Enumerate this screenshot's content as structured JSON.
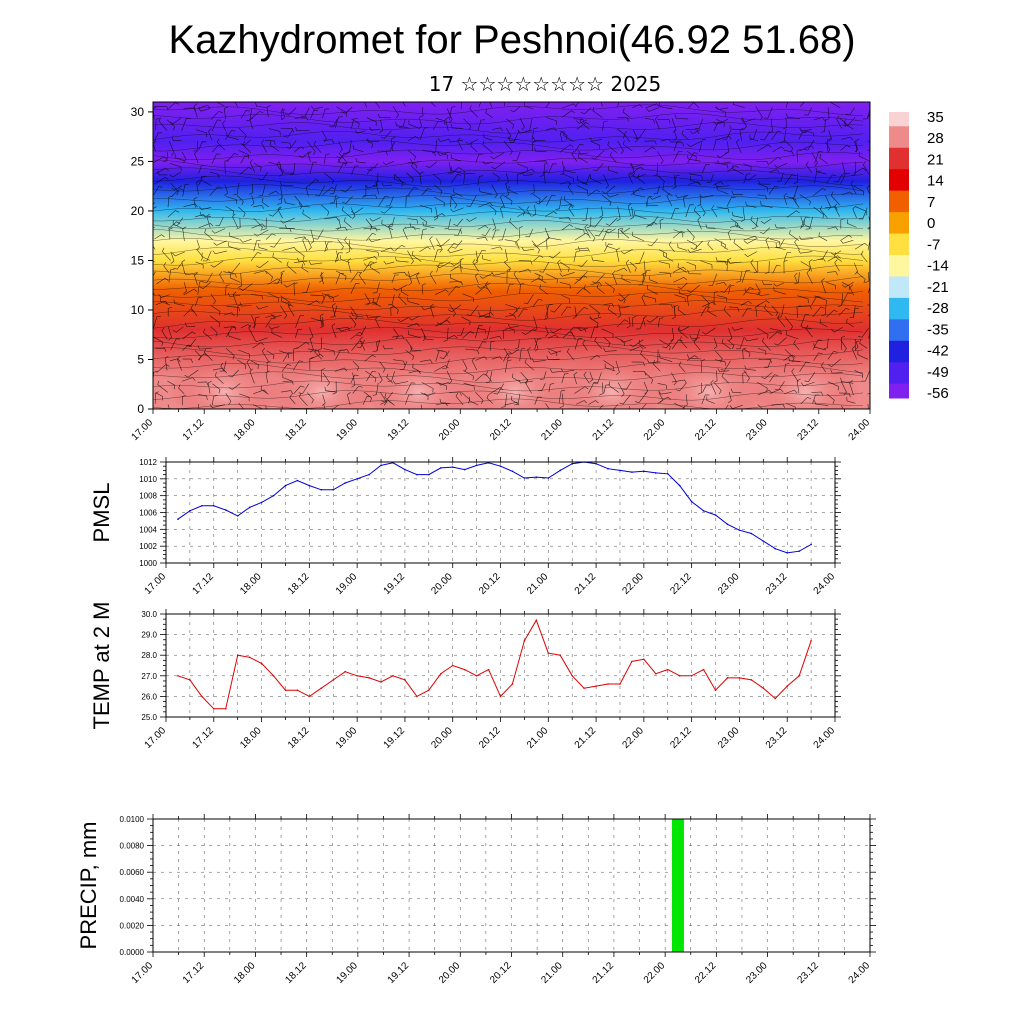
{
  "title": "Kazhydromet for Peshnoi(46.92 51.68)",
  "subtitle": "17 ☆☆☆☆☆☆☆☆ 2025",
  "time_ticks": [
    "17.00",
    "17.12",
    "18.00",
    "18.12",
    "19.00",
    "19.12",
    "20.00",
    "20.12",
    "21.00",
    "21.12",
    "22.00",
    "22.12",
    "23.00",
    "23.12",
    "24.00"
  ],
  "chart_data": [
    {
      "type": "heatmap",
      "name": "cross-section",
      "xlim": [
        0,
        14
      ],
      "ylim": [
        0,
        31
      ],
      "yticks": [
        0,
        5,
        10,
        15,
        20,
        25,
        30
      ],
      "colorbar": {
        "labels": [
          "35",
          "28",
          "21",
          "14",
          "7",
          "0",
          "-7",
          "-14",
          "-21",
          "-28",
          "-35",
          "-42",
          "-49",
          "-56"
        ],
        "palette": [
          "#f9d3d3",
          "#ef8a8a",
          "#e03030",
          "#e20000",
          "#f06000",
          "#f8a000",
          "#ffe040",
          "#fff6a0",
          "#c0e8f8",
          "#30b8f0",
          "#3070f0",
          "#2020e0",
          "#5020f0",
          "#8020f0"
        ]
      },
      "levels": [
        {
          "height": 0,
          "temp": 30
        },
        {
          "height": 3,
          "temp": 30
        },
        {
          "height": 8,
          "temp": 20
        },
        {
          "height": 12,
          "temp": 8
        },
        {
          "height": 15,
          "temp": -5
        },
        {
          "height": 17,
          "temp": -14
        },
        {
          "height": 20,
          "temp": -30
        },
        {
          "height": 23,
          "temp": -45
        },
        {
          "height": 25,
          "temp": -56
        },
        {
          "height": 27,
          "temp": -52
        },
        {
          "height": 31,
          "temp": -60
        }
      ]
    },
    {
      "type": "line",
      "name": "pmsl",
      "ylabel": "PMSL",
      "ylim": [
        1000,
        1012
      ],
      "yticks": [
        "1000",
        "1002",
        "1004",
        "1006",
        "1008",
        "1010",
        "1012"
      ],
      "color": "#0000dd",
      "x": [
        0.25,
        0.5,
        0.75,
        1.0,
        1.25,
        1.5,
        1.75,
        2.0,
        2.25,
        2.5,
        2.75,
        3.0,
        3.25,
        3.5,
        3.75,
        4.0,
        4.25,
        4.5,
        4.75,
        5.0,
        5.25,
        5.5,
        5.75,
        6.0,
        6.25,
        6.5,
        6.75,
        7.0,
        7.25,
        7.5,
        7.75,
        8.0,
        8.25,
        8.5,
        8.75,
        9.0,
        9.25,
        9.5,
        9.75,
        10.0,
        10.25,
        10.5,
        10.75,
        11.0,
        11.25,
        11.5,
        11.75,
        12.0,
        12.25,
        12.5,
        12.75,
        13.0,
        13.25,
        13.5
      ],
      "values": [
        1005.2,
        1006.2,
        1006.8,
        1006.8,
        1006.3,
        1005.6,
        1006.6,
        1007.2,
        1008.0,
        1009.2,
        1009.8,
        1009.2,
        1008.7,
        1008.7,
        1009.5,
        1010.0,
        1010.5,
        1011.6,
        1011.9,
        1011.1,
        1010.5,
        1010.5,
        1011.3,
        1011.4,
        1011.1,
        1011.6,
        1011.9,
        1011.5,
        1010.9,
        1010.1,
        1010.2,
        1010.1,
        1011.0,
        1011.8,
        1012.0,
        1011.8,
        1011.2,
        1011.0,
        1010.8,
        1010.9,
        1010.7,
        1010.6,
        1009.2,
        1007.3,
        1006.2,
        1005.7,
        1004.6,
        1003.9,
        1003.5,
        1002.6,
        1001.7,
        1001.2,
        1001.4,
        1002.2
      ]
    },
    {
      "type": "line",
      "name": "temp2m",
      "ylabel": "TEMP at 2 M",
      "ylim": [
        25,
        30
      ],
      "yticks": [
        "25.0",
        "26.0",
        "27.0",
        "28.0",
        "29.0",
        "30.0"
      ],
      "color": "#dd0000",
      "x": [
        0.25,
        0.5,
        0.75,
        1.0,
        1.25,
        1.5,
        1.75,
        2.0,
        2.25,
        2.5,
        2.75,
        3.0,
        3.25,
        3.5,
        3.75,
        4.0,
        4.25,
        4.5,
        4.75,
        5.0,
        5.25,
        5.5,
        5.75,
        6.0,
        6.25,
        6.5,
        6.75,
        7.0,
        7.25,
        7.5,
        7.75,
        8.0,
        8.25,
        8.5,
        8.75,
        9.0,
        9.25,
        9.5,
        9.75,
        10.0,
        10.25,
        10.5,
        10.75,
        11.0,
        11.25,
        11.5,
        11.75,
        12.0,
        12.25,
        12.5,
        12.75,
        13.0,
        13.25,
        13.5
      ],
      "values": [
        27.0,
        26.8,
        26.0,
        25.4,
        25.4,
        28.0,
        27.9,
        27.6,
        27.0,
        26.3,
        26.3,
        26.0,
        26.4,
        26.8,
        27.2,
        27.0,
        26.9,
        26.7,
        27.0,
        26.8,
        26.0,
        26.3,
        27.1,
        27.5,
        27.3,
        27.0,
        27.3,
        26.0,
        26.6,
        28.7,
        29.7,
        28.1,
        28.0,
        27.0,
        26.4,
        26.5,
        26.6,
        26.6,
        27.7,
        27.8,
        27.1,
        27.3,
        27.0,
        27.0,
        27.3,
        26.3,
        26.9,
        26.9,
        26.8,
        26.4,
        25.9,
        26.5,
        27.0,
        28.7
      ]
    },
    {
      "type": "bar",
      "name": "precip",
      "ylabel": "PRECIP, mm",
      "ylim": [
        0,
        0.01
      ],
      "yticks": [
        "0.0000",
        "0.0020",
        "0.0040",
        "0.0060",
        "0.0080",
        "0.0100"
      ],
      "color": "#00e600",
      "x": [
        10.25
      ],
      "values": [
        0.01
      ]
    }
  ]
}
